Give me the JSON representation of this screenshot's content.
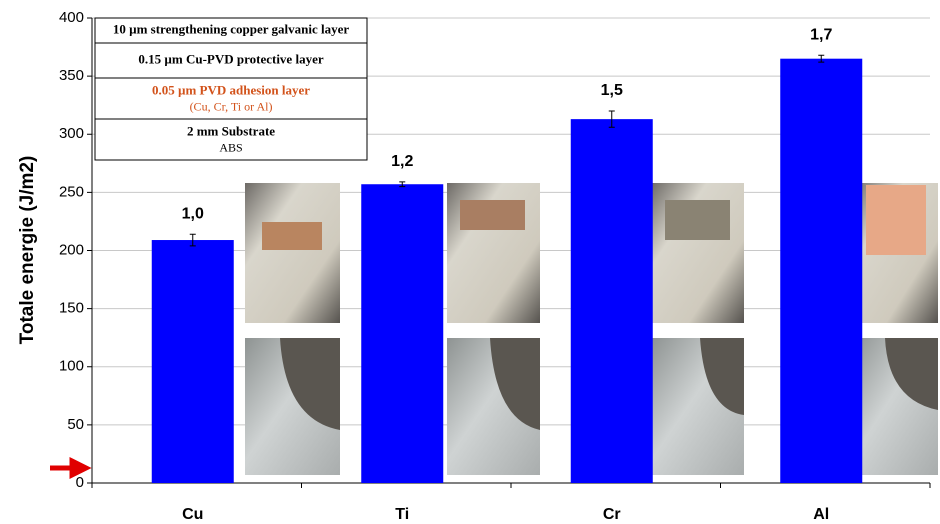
{
  "chart_data": {
    "type": "bar",
    "y_label": "Totale energie (J/m2)",
    "categories": [
      "Cu",
      "Ti",
      "Cr",
      "Al"
    ],
    "values": [
      209,
      257,
      313,
      365
    ],
    "errors": [
      5,
      2,
      7,
      3
    ],
    "color": "#0000ff",
    "relative": {
      "values": [
        1.0,
        1.2,
        1.5,
        1.7
      ],
      "value_labels": [
        "1,0",
        "1,2",
        "1,5",
        "1,7"
      ]
    },
    "ylim": [
      0,
      400
    ],
    "yticks": [
      0,
      50,
      100,
      150,
      200,
      250,
      300,
      350,
      400
    ],
    "grid": true,
    "layers": [
      {
        "lines": [
          "10 µm strengthening copper galvanic layer"
        ]
      },
      {
        "lines": [
          "0.15 µm Cu-PVD protective layer"
        ]
      },
      {
        "lines": [
          "0.05 µm PVD adhesion layer",
          "(Cu, Cr, Ti or Al)"
        ]
      },
      {
        "lines": [
          "2 mm Substrate",
          "ABS"
        ]
      }
    ]
  }
}
